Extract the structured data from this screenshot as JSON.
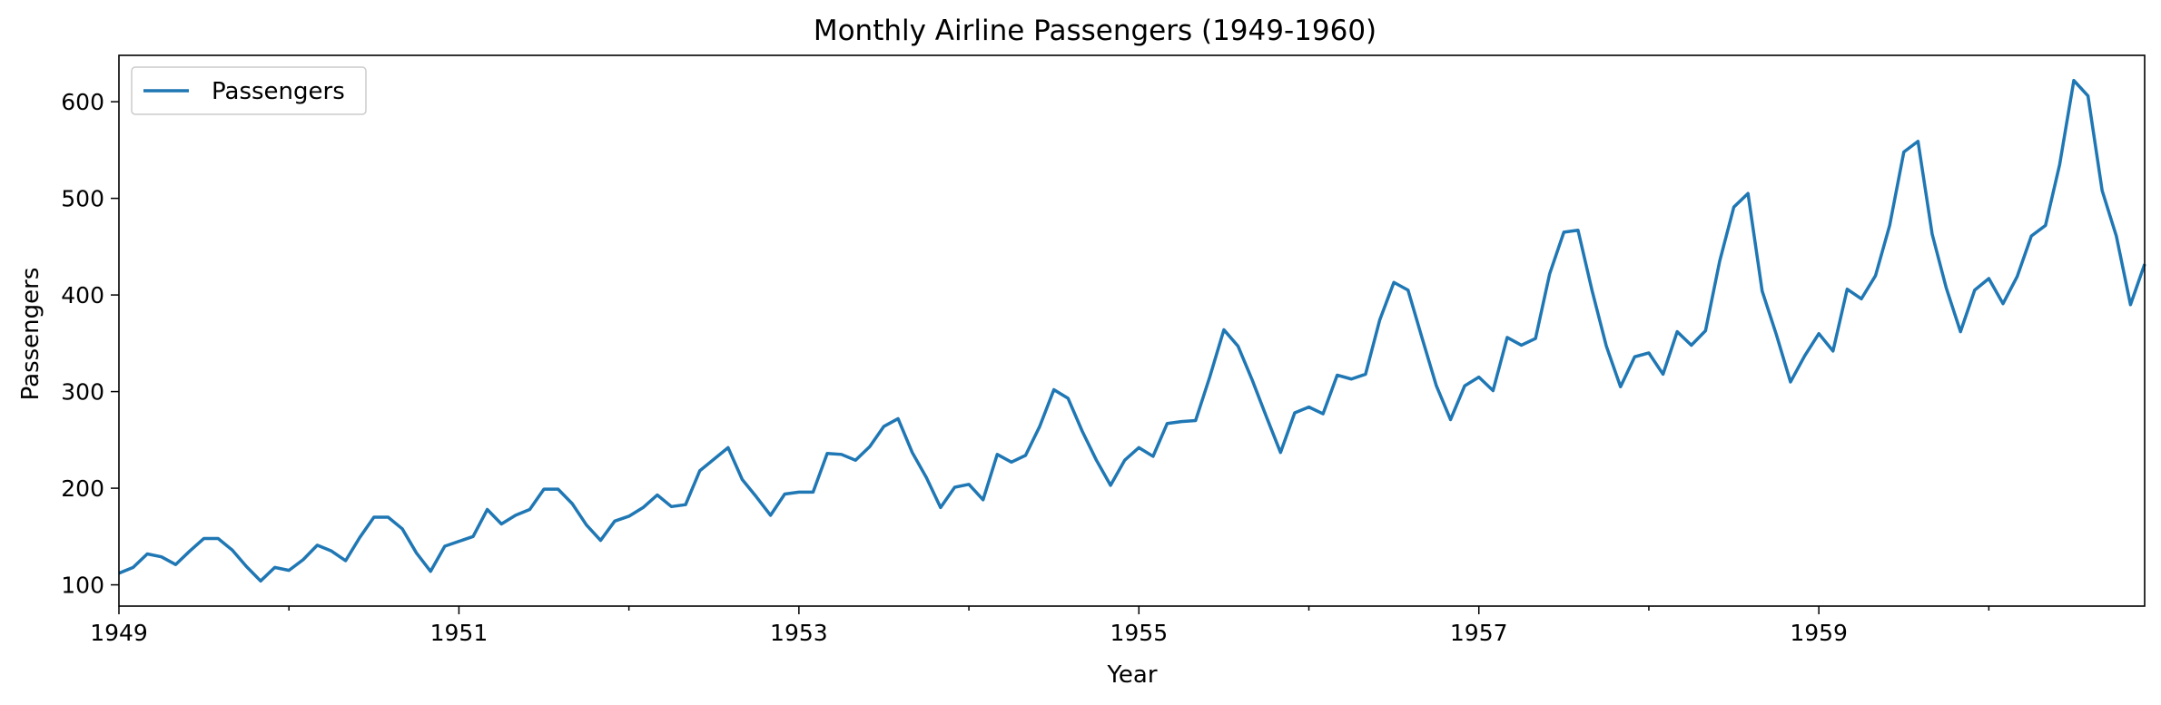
{
  "chart_data": {
    "type": "line",
    "title": "Monthly Airline Passengers (1949-1960)",
    "xlabel": "Year",
    "ylabel": "Passengers",
    "x_tick_labels": [
      "1949",
      "1951",
      "1953",
      "1955",
      "1957",
      "1959"
    ],
    "y_tick_labels": [
      "100",
      "200",
      "300",
      "400",
      "500",
      "600"
    ],
    "y_ticks": [
      100,
      200,
      300,
      400,
      500,
      600
    ],
    "x_range": [
      "1949-01",
      "1960-12"
    ],
    "ylim": [
      78,
      648
    ],
    "grid": false,
    "legend": {
      "position": "top-left",
      "entries": [
        "Passengers"
      ]
    },
    "colors": {
      "series": "#1f77b4",
      "axes": "#000000"
    },
    "series": [
      {
        "name": "Passengers",
        "start": "1949-01",
        "frequency": "monthly",
        "values": [
          112,
          118,
          132,
          129,
          121,
          135,
          148,
          148,
          136,
          119,
          104,
          118,
          115,
          126,
          141,
          135,
          125,
          149,
          170,
          170,
          158,
          133,
          114,
          140,
          145,
          150,
          178,
          163,
          172,
          178,
          199,
          199,
          184,
          162,
          146,
          166,
          171,
          180,
          193,
          181,
          183,
          218,
          230,
          242,
          209,
          191,
          172,
          194,
          196,
          196,
          236,
          235,
          229,
          243,
          264,
          272,
          237,
          211,
          180,
          201,
          204,
          188,
          235,
          227,
          234,
          264,
          302,
          293,
          259,
          229,
          203,
          229,
          242,
          233,
          267,
          269,
          270,
          315,
          364,
          347,
          312,
          274,
          237,
          278,
          284,
          277,
          317,
          313,
          318,
          374,
          413,
          405,
          355,
          306,
          271,
          306,
          315,
          301,
          356,
          348,
          355,
          422,
          465,
          467,
          404,
          347,
          305,
          336,
          340,
          318,
          362,
          348,
          363,
          435,
          491,
          505,
          404,
          359,
          310,
          337,
          360,
          342,
          406,
          396,
          420,
          472,
          548,
          559,
          463,
          407,
          362,
          405,
          417,
          391,
          419,
          461,
          472,
          535,
          622,
          606,
          508,
          461,
          390,
          432
        ]
      }
    ]
  }
}
